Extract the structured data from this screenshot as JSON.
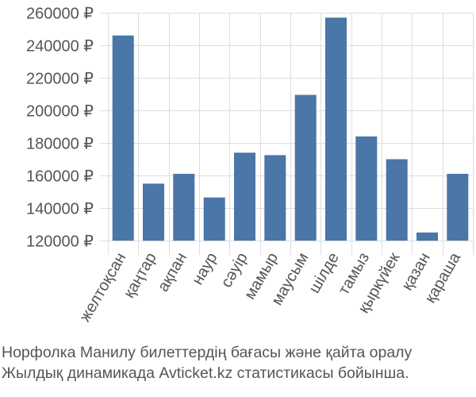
{
  "chart_data": {
    "type": "bar",
    "categories": [
      "желтоқсан",
      "қаңтар",
      "ақпан",
      "наур",
      "сәуір",
      "мамыр",
      "маусым",
      "шілде",
      "тамыз",
      "қыркүйек",
      "қазан",
      "қараша"
    ],
    "values": [
      246000,
      155000,
      161000,
      146500,
      174000,
      172500,
      209500,
      257000,
      184000,
      170000,
      125000,
      161000
    ],
    "ylim": [
      120000,
      260000
    ],
    "yticks": [
      120000,
      140000,
      160000,
      180000,
      200000,
      220000,
      240000,
      260000
    ],
    "ytick_labels": [
      "120000 ₽",
      "140000 ₽",
      "160000 ₽",
      "180000 ₽",
      "200000 ₽",
      "220000 ₽",
      "240000 ₽",
      "260000 ₽"
    ],
    "bar_color": "#4a76a8",
    "grid": true
  },
  "caption": {
    "line1": "Норфолка Манилу билеттердің бағасы және қайта оралу",
    "line2": "Жылдық динамикада Avticket.kz статистикасы бойынша."
  }
}
